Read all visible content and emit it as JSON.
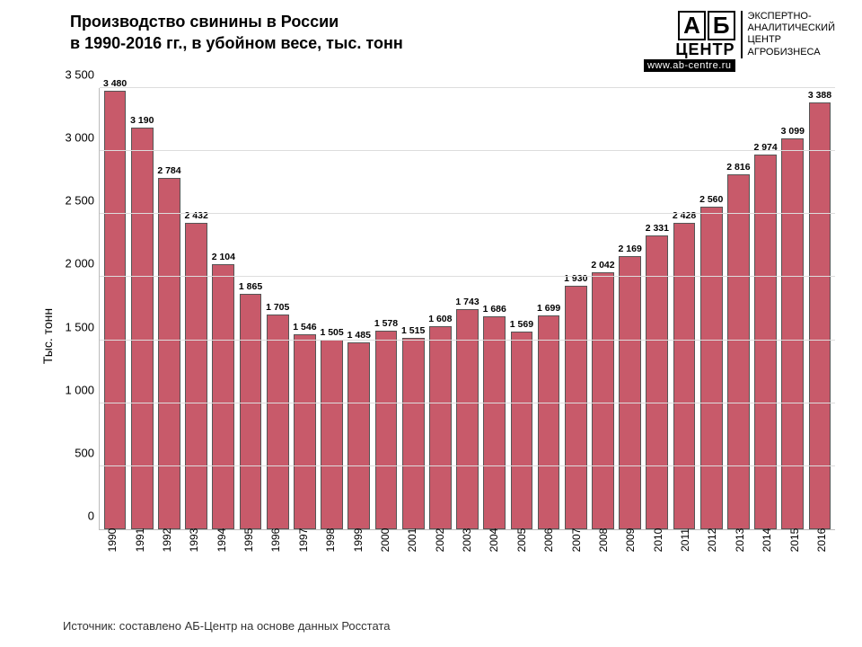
{
  "title_line1": "Производство свинины в России",
  "title_line2": "в 1990-2016 гг., в убойном весе, тыс. тонн",
  "logo": {
    "a": "А",
    "b": "Б",
    "center": "ЦЕНТР",
    "url": "www.ab-centre.ru",
    "tag1": "ЭКСПЕРТНО-",
    "tag2": "АНАЛИТИЧЕСКИЙ",
    "tag3": "ЦЕНТР",
    "tag4": "АГРОБИЗНЕСА"
  },
  "chart": {
    "type": "bar",
    "ylabel": "Тыс. тонн",
    "ylim": [
      0,
      3500
    ],
    "ytick_step": 500,
    "yticks": [
      "0",
      "500",
      "1 000",
      "1 500",
      "2 000",
      "2 500",
      "3 000",
      "3 500"
    ],
    "bar_color": "#c85a6a",
    "bar_border": "#555555",
    "grid_color": "#dddddd",
    "background_color": "#ffffff",
    "label_fontsize": 10.5,
    "tick_fontsize": 13,
    "categories": [
      "1990",
      "1991",
      "1992",
      "1993",
      "1994",
      "1995",
      "1996",
      "1997",
      "1998",
      "1999",
      "2000",
      "2001",
      "2002",
      "2003",
      "2004",
      "2005",
      "2006",
      "2007",
      "2008",
      "2009",
      "2010",
      "2011",
      "2012",
      "2013",
      "2014",
      "2015",
      "2016"
    ],
    "values": [
      3480,
      3190,
      2784,
      2432,
      2104,
      1865,
      1705,
      1546,
      1505,
      1485,
      1578,
      1515,
      1608,
      1743,
      1686,
      1569,
      1699,
      1930,
      2042,
      2169,
      2331,
      2428,
      2560,
      2816,
      2974,
      3099,
      3388
    ],
    "value_labels": [
      "3 480",
      "3 190",
      "2 784",
      "2 432",
      "2 104",
      "1 865",
      "1 705",
      "1 546",
      "1 505",
      "1 485",
      "1 578",
      "1 515",
      "1 608",
      "1 743",
      "1 686",
      "1 569",
      "1 699",
      "1 930",
      "2 042",
      "2 169",
      "2 331",
      "2 428",
      "2 560",
      "2 816",
      "2 974",
      "3 099",
      "3 388"
    ]
  },
  "source_text": "Источник: составлено АБ-Центр на основе данных Росстата"
}
